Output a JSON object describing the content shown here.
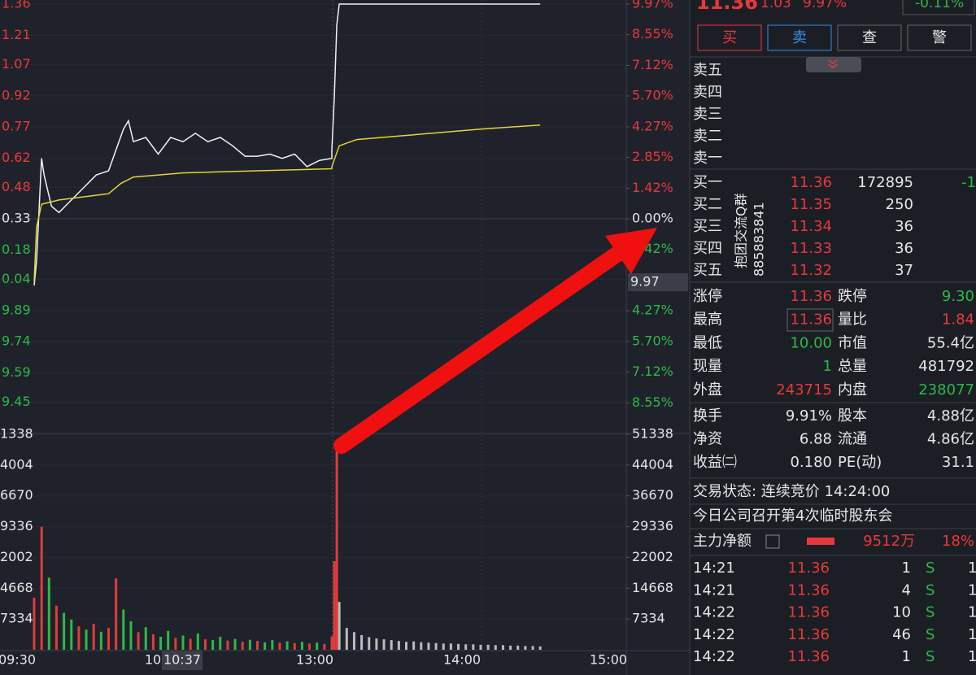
{
  "quote": {
    "price": "11.36",
    "change": "1.03",
    "pct": "9.97%",
    "index_pct": "-0.11%",
    "buttons": [
      "买",
      "卖",
      "查",
      "警"
    ],
    "asks": [
      "卖五",
      "卖四",
      "卖三",
      "卖二",
      "卖一"
    ],
    "bids": [
      [
        "买一",
        "11.36",
        "172895",
        "-1"
      ],
      [
        "买二",
        "11.35",
        "250"
      ],
      [
        "买三",
        "11.34",
        "36"
      ],
      [
        "买四",
        "11.33",
        "36"
      ],
      [
        "买五",
        "11.32",
        "37"
      ]
    ],
    "watermark": [
      "抱团交流Q群",
      "885883841"
    ],
    "stats": [
      [
        "涨停",
        "11.36",
        "跌停",
        "9.30"
      ],
      [
        "最高",
        "11.36",
        "量比",
        "1.84"
      ],
      [
        "最低",
        "10.00",
        "市值",
        "55.4亿"
      ],
      [
        "现量",
        "1",
        "总量",
        "481792"
      ],
      [
        "外盘",
        "243715",
        "内盘",
        "238077"
      ]
    ],
    "fundamentals": [
      [
        "换手",
        "9.91%",
        "股本",
        "4.88亿"
      ],
      [
        "净资",
        "6.88",
        "流通",
        "4.86亿"
      ],
      [
        "收益㈡",
        "0.180",
        "PE(动)",
        "31.1"
      ]
    ],
    "status": "交易状态: 连续竞价 14:24:00",
    "news": "今日公司召开第4次临时股东会",
    "main_flow": [
      "主力净额",
      "9512万",
      "18%"
    ],
    "trades": [
      [
        "14:21",
        "11.36",
        "1",
        "S",
        "1"
      ],
      [
        "14:21",
        "11.36",
        "4",
        "S",
        "1"
      ],
      [
        "14:22",
        "11.36",
        "10",
        "S",
        "1"
      ],
      [
        "14:22",
        "11.36",
        "46",
        "S",
        "1"
      ],
      [
        "14:22",
        "11.36",
        "1",
        "S",
        "1"
      ]
    ]
  },
  "chart_data": {
    "type": "line",
    "ylim": [
      9.3,
      11.36
    ],
    "yticks": [
      {
        "value": 11.36,
        "label": "1.36"
      },
      {
        "value": 11.21,
        "label": "1.21"
      },
      {
        "value": 11.07,
        "label": "1.07"
      },
      {
        "value": 10.92,
        "label": "0.92"
      },
      {
        "value": 10.77,
        "label": "0.77"
      },
      {
        "value": 10.62,
        "label": "0.62"
      },
      {
        "value": 10.48,
        "label": "0.48"
      },
      {
        "value": 10.33,
        "label": "0.33"
      },
      {
        "value": 10.18,
        "label": "0.18"
      },
      {
        "value": 10.04,
        "label": "0.04"
      },
      9.89,
      9.74,
      9.59,
      9.45
    ],
    "y2lim": [
      -9.97,
      9.97
    ],
    "y2ticks": [
      {
        "value": 9.97,
        "label": "9.97%"
      },
      {
        "value": 8.55,
        "label": "8.55%"
      },
      {
        "value": 7.12,
        "label": "7.12%"
      },
      {
        "value": 5.7,
        "label": "5.70%"
      },
      {
        "value": 4.27,
        "label": "4.27%"
      },
      {
        "value": 2.85,
        "label": "2.85%"
      },
      {
        "value": 1.42,
        "label": "1.42%"
      },
      {
        "value": 0,
        "label": "0.00%"
      },
      {
        "value": -1.42,
        "label": "1.42%"
      },
      {
        "value": -4.27,
        "label": "4.27%"
      },
      {
        "value": -5.7,
        "label": "5.70%"
      },
      {
        "value": -7.12,
        "label": "7.12%"
      },
      {
        "value": -8.55,
        "label": "8.55%"
      }
    ],
    "series": [
      {
        "color": "#f2f2f2",
        "x": [
          "09:30",
          "09:31",
          "09:33",
          "09:34",
          "09:37",
          "09:40",
          "09:45",
          "09:50",
          "09:55",
          "10:00",
          "10:03",
          "10:06",
          "10:08",
          "10:10",
          "10:15",
          "10:20",
          "10:25",
          "10:30",
          "10:35",
          "10:40",
          "10:45",
          "10:50",
          "10:55",
          "11:00",
          "11:05",
          "11:10",
          "11:15",
          "11:20",
          "11:25",
          "11:30",
          "13:00",
          "13:01",
          "13:02",
          "13:03",
          "14:24"
        ],
        "values": [
          10.01,
          10.13,
          10.62,
          10.54,
          10.39,
          10.36,
          10.42,
          10.48,
          10.54,
          10.56,
          10.66,
          10.76,
          10.8,
          10.7,
          10.72,
          10.64,
          10.72,
          10.7,
          10.74,
          10.7,
          10.72,
          10.68,
          10.63,
          10.63,
          10.64,
          10.62,
          10.64,
          10.58,
          10.61,
          10.62,
          10.66,
          10.91,
          11.26,
          11.36,
          11.36
        ]
      },
      {
        "color": "#e6d33a",
        "x": [
          "09:30",
          "09:31",
          "09:33",
          "09:40",
          "10:00",
          "10:05",
          "10:10",
          "10:30",
          "11:00",
          "11:30",
          "13:00",
          "13:03",
          "13:10",
          "13:30",
          "14:00",
          "14:24"
        ],
        "values": [
          10.03,
          10.29,
          10.4,
          10.42,
          10.45,
          10.5,
          10.53,
          10.55,
          10.56,
          10.57,
          10.58,
          10.68,
          10.71,
          10.73,
          10.76,
          10.78
        ]
      }
    ],
    "volume": {
      "ylim": [
        0,
        51338
      ],
      "yticks": [
        {
          "value": 51338,
          "label": "1338"
        },
        {
          "value": 44004,
          "label": "4004"
        },
        {
          "value": 36670,
          "label": "6670"
        },
        {
          "value": 29336,
          "label": "9336"
        },
        {
          "value": 22002,
          "label": "2002"
        },
        {
          "value": 14668,
          "label": "4668"
        },
        7334
      ],
      "y2ticks": [
        51338,
        44004,
        36670,
        29336,
        22002,
        14668,
        7334
      ],
      "x": [
        "09:30",
        "09:33",
        "09:36",
        "09:39",
        "09:42",
        "09:45",
        "09:48",
        "09:51",
        "09:54",
        "09:57",
        "10:00",
        "10:03",
        "10:06",
        "10:09",
        "10:12",
        "10:15",
        "10:18",
        "10:21",
        "10:24",
        "10:27",
        "10:30",
        "10:33",
        "10:36",
        "10:39",
        "10:42",
        "10:45",
        "10:48",
        "10:51",
        "10:54",
        "10:57",
        "11:00",
        "11:03",
        "11:06",
        "11:09",
        "11:12",
        "11:15",
        "11:18",
        "11:21",
        "11:24",
        "11:27",
        "13:00",
        "13:01",
        "13:02",
        "13:03",
        "13:06",
        "13:09",
        "13:12",
        "13:15",
        "13:18",
        "13:21",
        "13:24",
        "13:27",
        "13:30",
        "13:33",
        "13:36",
        "13:39",
        "13:42",
        "13:45",
        "13:48",
        "13:51",
        "13:54",
        "13:57",
        "14:00",
        "14:03",
        "14:06",
        "14:09",
        "14:12",
        "14:15",
        "14:18",
        "14:21",
        "14:24"
      ],
      "values": [
        12400,
        29300,
        17200,
        10500,
        8800,
        7200,
        5600,
        4800,
        6200,
        4300,
        5200,
        17000,
        9600,
        6800,
        4200,
        5400,
        3700,
        3100,
        4500,
        2800,
        3400,
        2600,
        3900,
        2500,
        2300,
        3100,
        2200,
        2600,
        1900,
        2400,
        2100,
        1800,
        2300,
        1700,
        2000,
        1600,
        1900,
        1500,
        1700,
        1400,
        3200,
        21100,
        47300,
        11400,
        5200,
        4200,
        3500,
        3000,
        2700,
        2500,
        2300,
        2100,
        1900,
        2000,
        1800,
        1700,
        1600,
        1500,
        1500,
        1400,
        1300,
        1300,
        1200,
        1200,
        1100,
        1100,
        1000,
        1000,
        900,
        900,
        800
      ],
      "colors": [
        "#e03c3c",
        "#e03c3c",
        "#2fb84b",
        "#e03c3c",
        "#2fb84b",
        "#2fb84b",
        "#e03c3c",
        "#2fb84b",
        "#e03c3c",
        "#2fb84b",
        "#e03c3c",
        "#e03c3c",
        "#2fb84b",
        "#2fb84b",
        "#e03c3c",
        "#2fb84b",
        "#e03c3c",
        "#2fb84b",
        "#2fb84b",
        "#e03c3c",
        "#2fb84b",
        "#e03c3c",
        "#2fb84b",
        "#e03c3c",
        "#2fb84b",
        "#2fb84b",
        "#e03c3c",
        "#2fb84b",
        "#e03c3c",
        "#2fb84b",
        "#e03c3c",
        "#2fb84b",
        "#2fb84b",
        "#e03c3c",
        "#2fb84b",
        "#e03c3c",
        "#2fb84b",
        "#e03c3c",
        "#2fb84b",
        "#e03c3c",
        "#e03c3c",
        "#e03c3c",
        "#e03c3c",
        "#bbbbbb",
        "#bbbbbb",
        "#bbbbbb",
        "#bbbbbb",
        "#bbbbbb",
        "#bbbbbb",
        "#bbbbbb",
        "#bbbbbb",
        "#bbbbbb",
        "#bbbbbb",
        "#bbbbbb",
        "#bbbbbb",
        "#bbbbbb",
        "#bbbbbb",
        "#bbbbbb",
        "#bbbbbb",
        "#bbbbbb",
        "#bbbbbb",
        "#bbbbbb",
        "#bbbbbb",
        "#bbbbbb",
        "#bbbbbb",
        "#bbbbbb",
        "#bbbbbb",
        "#bbbbbb",
        "#bbbbbb",
        "#bbbbbb",
        "#bbbbbb"
      ]
    },
    "x_labels": [
      "09:30",
      "10",
      "13:00",
      "14:00",
      "15:00"
    ],
    "crosshair": {
      "price": "9.97",
      "time": "10:37"
    }
  }
}
